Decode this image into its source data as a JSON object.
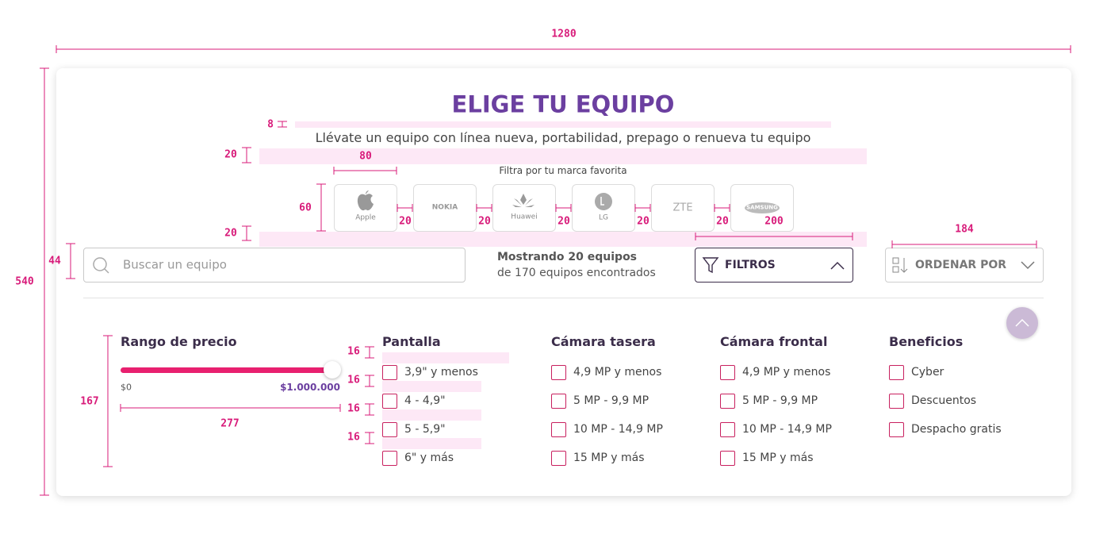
{
  "header": {
    "title": "ELIGE TU EQUIPO",
    "subtitle": "Llévate un equipo con línea nueva, portabilidad, prepago o renueva tu equipo",
    "brand_prompt": "Filtra por tu marca favorita"
  },
  "brands": [
    "Apple",
    "NOKIA",
    "Huawei",
    "LG",
    "ZTE",
    "SAMSUNG"
  ],
  "toolbar": {
    "search_placeholder": "Buscar un equipo",
    "results_line1": "Mostrando 20 equipos",
    "results_line2": "de 170 equipos encontrados",
    "filters_button": "FILTROS",
    "sort_button": "ORDENAR POR"
  },
  "price": {
    "title": "Rango de precio",
    "min_label": "$0",
    "max_label": "$1.000.000"
  },
  "filter_groups": [
    {
      "title": "Pantalla",
      "options": [
        "3,9\" y menos",
        "4 - 4,9\"",
        "5 - 5,9\"",
        "6\" y más"
      ]
    },
    {
      "title": "Cámara tasera",
      "options": [
        "4,9 MP y menos",
        "5 MP - 9,9 MP",
        "10 MP - 14,9 MP",
        "15 MP y más"
      ]
    },
    {
      "title": "Cámara frontal",
      "options": [
        "4,9 MP y menos",
        "5 MP - 9,9 MP",
        "10 MP - 14,9 MP",
        "15 MP y más"
      ]
    },
    {
      "title": "Beneficios",
      "options": [
        "Cyber",
        "Descuentos",
        "Despacho gratis"
      ]
    }
  ],
  "annotations": {
    "card_width": 1280,
    "card_height": 540,
    "title_gap": 8,
    "subtitle_gap": 20,
    "brand_width": 80,
    "brand_height": 60,
    "brand_gaps": [
      20,
      20,
      20,
      20,
      20
    ],
    "brands_gap": 20,
    "filters_width": 200,
    "sort_width": 184,
    "toolbar_height": 44,
    "price_height": 167,
    "price_width": 277,
    "option_gaps": [
      16,
      16,
      16,
      16
    ]
  }
}
